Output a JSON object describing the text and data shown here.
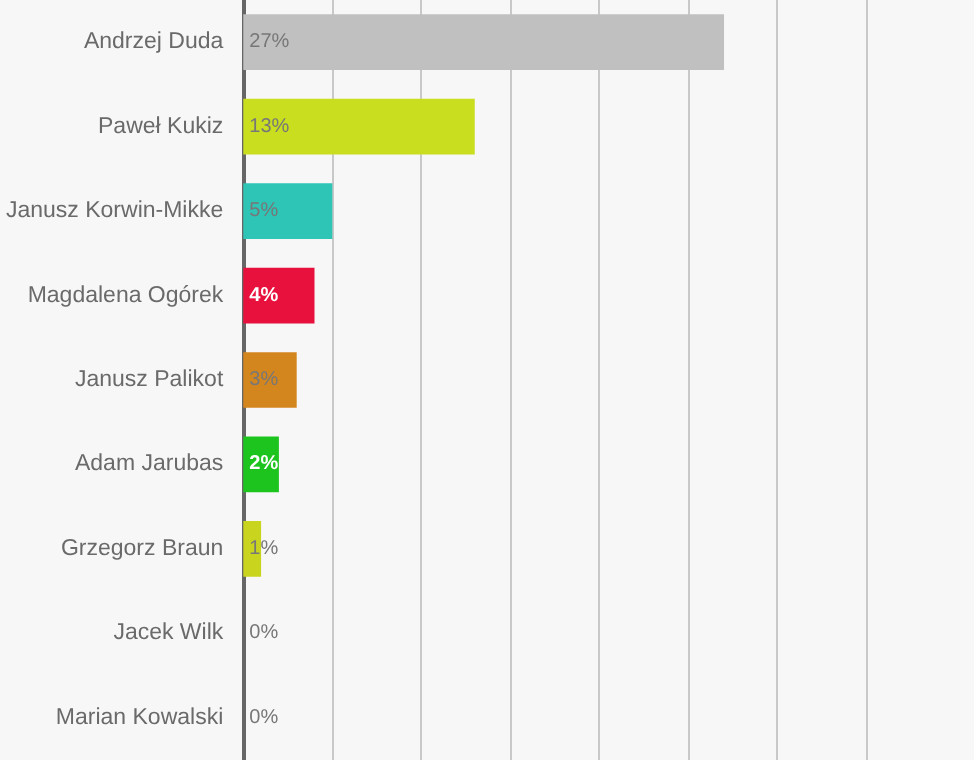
{
  "chart_data": {
    "type": "bar",
    "orientation": "horizontal",
    "categories": [
      "Andrzej Duda",
      "Paweł Kukiz",
      "Janusz Korwin-Mikke",
      "Magdalena Ogórek",
      "Janusz Palikot",
      "Adam Jarubas",
      "Grzegorz Braun",
      "Jacek Wilk",
      "Marian Kowalski"
    ],
    "values": [
      27,
      13,
      5,
      4,
      3,
      2,
      1,
      0,
      0
    ],
    "value_labels": [
      "27%",
      "13%",
      "5%",
      "4%",
      "3%",
      "2%",
      "1%",
      "0%",
      "0%"
    ],
    "colors": [
      "#c0c0c0",
      "#c8de1e",
      "#2ec4b6",
      "#e8103c",
      "#d4861e",
      "#1ec41e",
      "#c8d41e",
      "#c8d41e",
      "#c8d41e"
    ],
    "xticks": [
      {
        "value": 0,
        "label": null
      },
      {
        "value": 5,
        "label": null
      },
      {
        "value": 10,
        "label": null
      },
      {
        "value": 15,
        "label": null
      },
      {
        "value": 20,
        "label": null
      },
      {
        "value": 25,
        "label": null
      },
      {
        "value": 30,
        "label": null
      },
      {
        "value": 35,
        "label": null
      }
    ],
    "grid": "x",
    "tick_labels": "y"
  }
}
